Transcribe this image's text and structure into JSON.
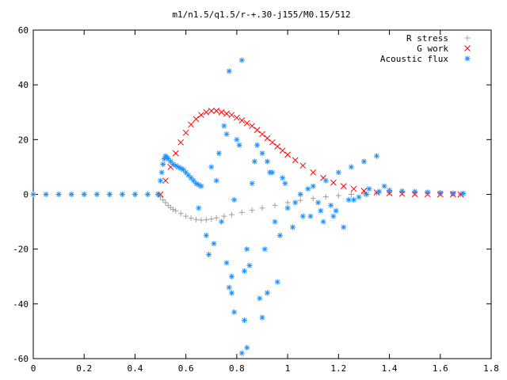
{
  "chart_data": {
    "type": "scatter",
    "title": "m1/n1.5/q1.5/r-+.30-j155/M0.15/512",
    "xlabel": "",
    "ylabel": "",
    "xlim": [
      0,
      1.8
    ],
    "ylim": [
      -60,
      60
    ],
    "x_ticks": [
      "0",
      "0.2",
      "0.4",
      "0.6",
      "0.8",
      "1",
      "1.2",
      "1.4",
      "1.6",
      "1.8"
    ],
    "y_ticks": [
      "60",
      "40",
      "20",
      "0",
      "-20",
      "-40",
      "-60"
    ],
    "grid": false,
    "legend_position": "top-right",
    "series": [
      {
        "name": "R stress",
        "marker": "+",
        "color": "#a0a0a0",
        "x": [
          0.0,
          0.1,
          0.2,
          0.3,
          0.4,
          0.49,
          0.5,
          0.51,
          0.52,
          0.53,
          0.54,
          0.55,
          0.56,
          0.58,
          0.6,
          0.62,
          0.64,
          0.66,
          0.68,
          0.7,
          0.72,
          0.75,
          0.78,
          0.82,
          0.86,
          0.9,
          0.95,
          1.0,
          1.05,
          1.1,
          1.15,
          1.2,
          1.25,
          1.3,
          1.35,
          1.4,
          1.45,
          1.5,
          1.55,
          1.6,
          1.65,
          1.68
        ],
        "y": [
          0,
          0,
          0,
          0,
          0,
          0,
          -1,
          -2,
          -3,
          -4,
          -4.8,
          -5.5,
          -6,
          -7,
          -8,
          -8.7,
          -9.2,
          -9.4,
          -9.3,
          -9,
          -8.6,
          -8,
          -7.4,
          -6.6,
          -5.8,
          -5,
          -4,
          -3,
          -2.2,
          -1.5,
          -0.9,
          -0.4,
          0,
          0.3,
          0.5,
          0.6,
          0.6,
          0.5,
          0.4,
          0.3,
          0.2,
          0.1
        ]
      },
      {
        "name": "G work",
        "marker": "x",
        "color": "#ff0000",
        "x": [
          0.5,
          0.52,
          0.54,
          0.56,
          0.58,
          0.6,
          0.62,
          0.64,
          0.66,
          0.68,
          0.7,
          0.72,
          0.74,
          0.76,
          0.78,
          0.8,
          0.82,
          0.84,
          0.86,
          0.88,
          0.9,
          0.92,
          0.94,
          0.96,
          0.98,
          1.0,
          1.03,
          1.06,
          1.1,
          1.14,
          1.18,
          1.22,
          1.26,
          1.3,
          1.35,
          1.4,
          1.45,
          1.5,
          1.55,
          1.6,
          1.65,
          1.68
        ],
        "y": [
          0,
          5,
          10,
          15,
          19,
          22.5,
          25.5,
          27.5,
          29,
          30,
          30.5,
          30.5,
          30,
          29.5,
          29,
          28,
          27,
          26,
          25,
          23.5,
          22,
          20.5,
          19,
          17.5,
          16,
          14.5,
          12.5,
          10.5,
          8,
          6,
          4.3,
          3,
          2,
          1.3,
          0.7,
          0.4,
          0.2,
          0.1,
          0.05,
          0,
          0,
          0
        ]
      },
      {
        "name": "Acoustic flux",
        "marker": "*",
        "color": "#1e90ff",
        "x": [
          0.0,
          0.05,
          0.1,
          0.15,
          0.2,
          0.25,
          0.3,
          0.35,
          0.4,
          0.45,
          0.49,
          0.5,
          0.505,
          0.51,
          0.515,
          0.52,
          0.525,
          0.53,
          0.54,
          0.55,
          0.56,
          0.57,
          0.58,
          0.59,
          0.6,
          0.61,
          0.62,
          0.63,
          0.64,
          0.65,
          0.66,
          1.4,
          1.45,
          1.5,
          1.55,
          1.6,
          1.65,
          1.69,
          0.77,
          0.82,
          0.75,
          0.8,
          0.88,
          0.9,
          0.92,
          0.7,
          0.72,
          0.65,
          0.68,
          0.76,
          0.84,
          0.95,
          1.0,
          1.05,
          1.1,
          1.15,
          1.2,
          1.25,
          1.3,
          1.35,
          1.22,
          1.18,
          1.12,
          1.08,
          0.98,
          0.94,
          0.86,
          0.79,
          0.74,
          0.71,
          0.69,
          0.78,
          0.83,
          0.91,
          0.97,
          1.02,
          1.06,
          1.13,
          1.17,
          1.24,
          1.28,
          1.32,
          1.38,
          0.73,
          0.76,
          0.81,
          0.87,
          0.93,
          0.99,
          1.03,
          1.09,
          1.14,
          1.19,
          1.26,
          1.31,
          1.36,
          0.77,
          0.79,
          0.83,
          0.89,
          0.92,
          0.96,
          0.84,
          0.82,
          0.9,
          0.78,
          0.85
        ],
        "y": [
          0,
          0,
          0,
          0,
          0,
          0,
          0,
          0,
          0,
          0,
          0,
          5,
          8,
          11,
          13,
          14,
          13.5,
          13,
          12,
          11,
          10.5,
          10,
          9.5,
          9,
          8,
          7,
          6,
          5,
          4,
          3.5,
          3,
          1.5,
          1.2,
          1,
          0.8,
          0.6,
          0.4,
          0.3,
          45,
          49,
          25,
          20,
          18,
          15,
          12,
          10,
          5,
          -5,
          -15,
          -25,
          -20,
          -10,
          -5,
          0,
          3,
          5,
          8,
          10,
          12,
          14,
          -12,
          -8,
          -3,
          2,
          6,
          8,
          4,
          -2,
          -10,
          -18,
          -22,
          -30,
          -28,
          -20,
          -15,
          -12,
          -8,
          -6,
          -4,
          -2,
          -1,
          2,
          3,
          15,
          22,
          18,
          12,
          8,
          4,
          -3,
          -8,
          -10,
          -6,
          -2,
          0,
          1,
          -34,
          -43,
          -46,
          -38,
          -36,
          -32,
          -56,
          -58,
          -45,
          -36,
          -26
        ]
      }
    ]
  }
}
